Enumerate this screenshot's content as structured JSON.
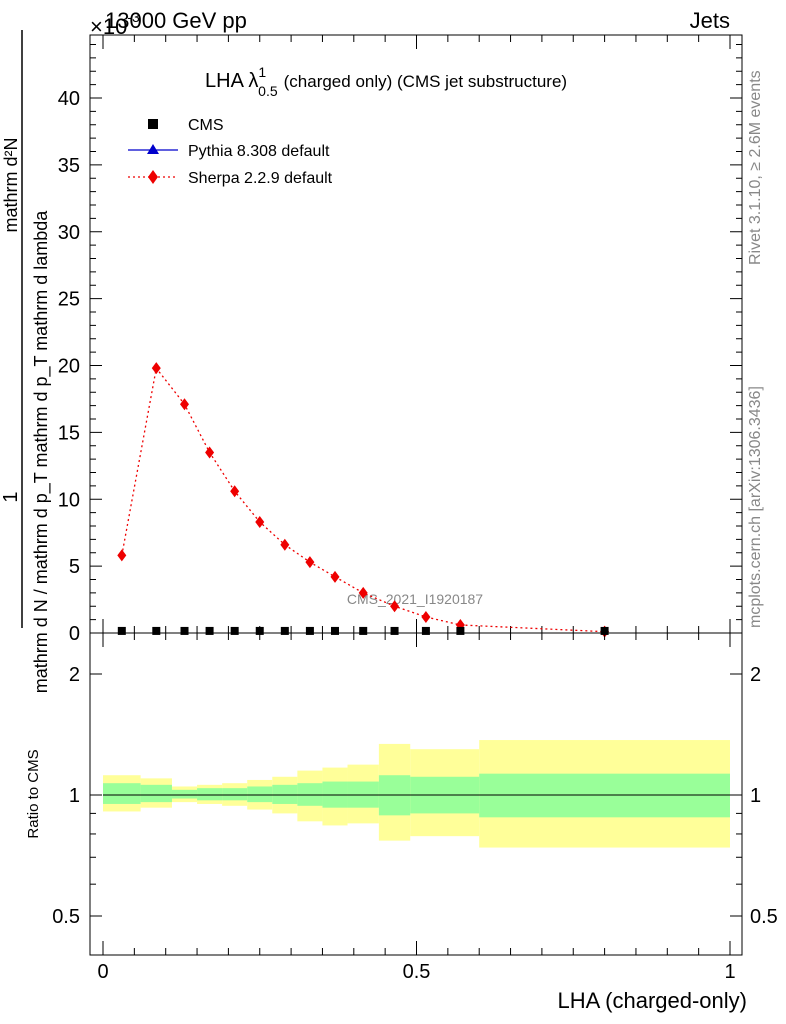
{
  "header": {
    "energy": "13000 GeV pp",
    "exponent": "×10",
    "exponent_power": "-3",
    "process": "Jets"
  },
  "side_labels": {
    "rivet": "Rivet 3.1.10, ≥ 2.6M events",
    "mcplots": "mcplots.cern.ch [arXiv:1306.3436]",
    "analysis_id": "CMS_2021_I1920187"
  },
  "chart_data": [
    {
      "type": "line",
      "title_main": "LHA λ",
      "title_sup": "1",
      "title_sub": "0.5",
      "title_rest": "(charged only) (CMS jet substructure)",
      "ylabel_numerator": "1",
      "ylabel_denominator": "mathrm d N / mathrm d p_T mathrm d p_T mathrm d lambda",
      "ylabel_top": "mathrm d²N",
      "xlim": [
        0,
        1
      ],
      "ylim": [
        0,
        45
      ],
      "y_ticks": [
        "0",
        "5",
        "10",
        "15",
        "20",
        "25",
        "30",
        "35",
        "40"
      ],
      "legend_position": "top-left",
      "series": [
        {
          "name": "CMS",
          "marker": "square",
          "color": "#000000",
          "x": [
            0.03,
            0.085,
            0.13,
            0.17,
            0.21,
            0.25,
            0.29,
            0.33,
            0.37,
            0.415,
            0.465,
            0.515,
            0.57,
            0.8
          ],
          "values": [
            0.08,
            0.08,
            0.08,
            0.08,
            0.08,
            0.08,
            0.08,
            0.08,
            0.08,
            0.08,
            0.08,
            0.08,
            0.08,
            0.08
          ]
        },
        {
          "name": "Pythia 8.308 default",
          "marker": "triangle",
          "color": "#0000cc",
          "x": [],
          "values": []
        },
        {
          "name": "Sherpa 2.2.9 default",
          "marker": "diamond",
          "color": "#ee0000",
          "dash": "dotted",
          "x": [
            0.03,
            0.085,
            0.13,
            0.17,
            0.21,
            0.25,
            0.29,
            0.33,
            0.37,
            0.415,
            0.465,
            0.515,
            0.57,
            0.8
          ],
          "values": [
            5.8,
            19.8,
            17.1,
            13.5,
            10.6,
            8.3,
            6.6,
            5.3,
            4.2,
            3.0,
            2.0,
            1.2,
            0.6,
            0.1
          ]
        }
      ]
    },
    {
      "type": "area",
      "ylabel": "Ratio to CMS",
      "xlabel": "LHA (charged-only)",
      "xlim": [
        0,
        1
      ],
      "ylim": [
        0.4,
        2.3
      ],
      "y_ticks": [
        "0.5",
        "1",
        "2"
      ],
      "x_ticks": [
        "0",
        "0.5",
        "1"
      ],
      "colors": {
        "inner_band": "#99ff99",
        "outer_band": "#ffff99",
        "reference_line": "#000000"
      },
      "bins": [
        {
          "lo": 0.0,
          "hi": 0.06,
          "inner": [
            0.95,
            1.07
          ],
          "outer": [
            0.91,
            1.12
          ]
        },
        {
          "lo": 0.06,
          "hi": 0.11,
          "inner": [
            0.96,
            1.06
          ],
          "outer": [
            0.93,
            1.1
          ]
        },
        {
          "lo": 0.11,
          "hi": 0.15,
          "inner": [
            0.98,
            1.03
          ],
          "outer": [
            0.96,
            1.05
          ]
        },
        {
          "lo": 0.15,
          "hi": 0.19,
          "inner": [
            0.97,
            1.04
          ],
          "outer": [
            0.95,
            1.06
          ]
        },
        {
          "lo": 0.19,
          "hi": 0.23,
          "inner": [
            0.97,
            1.04
          ],
          "outer": [
            0.94,
            1.07
          ]
        },
        {
          "lo": 0.23,
          "hi": 0.27,
          "inner": [
            0.96,
            1.05
          ],
          "outer": [
            0.92,
            1.09
          ]
        },
        {
          "lo": 0.27,
          "hi": 0.31,
          "inner": [
            0.95,
            1.06
          ],
          "outer": [
            0.9,
            1.11
          ]
        },
        {
          "lo": 0.31,
          "hi": 0.35,
          "inner": [
            0.94,
            1.07
          ],
          "outer": [
            0.86,
            1.15
          ]
        },
        {
          "lo": 0.35,
          "hi": 0.39,
          "inner": [
            0.93,
            1.08
          ],
          "outer": [
            0.84,
            1.17
          ]
        },
        {
          "lo": 0.39,
          "hi": 0.44,
          "inner": [
            0.93,
            1.08
          ],
          "outer": [
            0.85,
            1.19
          ]
        },
        {
          "lo": 0.44,
          "hi": 0.49,
          "inner": [
            0.89,
            1.12
          ],
          "outer": [
            0.77,
            1.34
          ]
        },
        {
          "lo": 0.49,
          "hi": 0.6,
          "inner": [
            0.9,
            1.11
          ],
          "outer": [
            0.79,
            1.3
          ]
        },
        {
          "lo": 0.6,
          "hi": 1.0,
          "inner": [
            0.88,
            1.13
          ],
          "outer": [
            0.74,
            1.37
          ]
        }
      ]
    }
  ]
}
